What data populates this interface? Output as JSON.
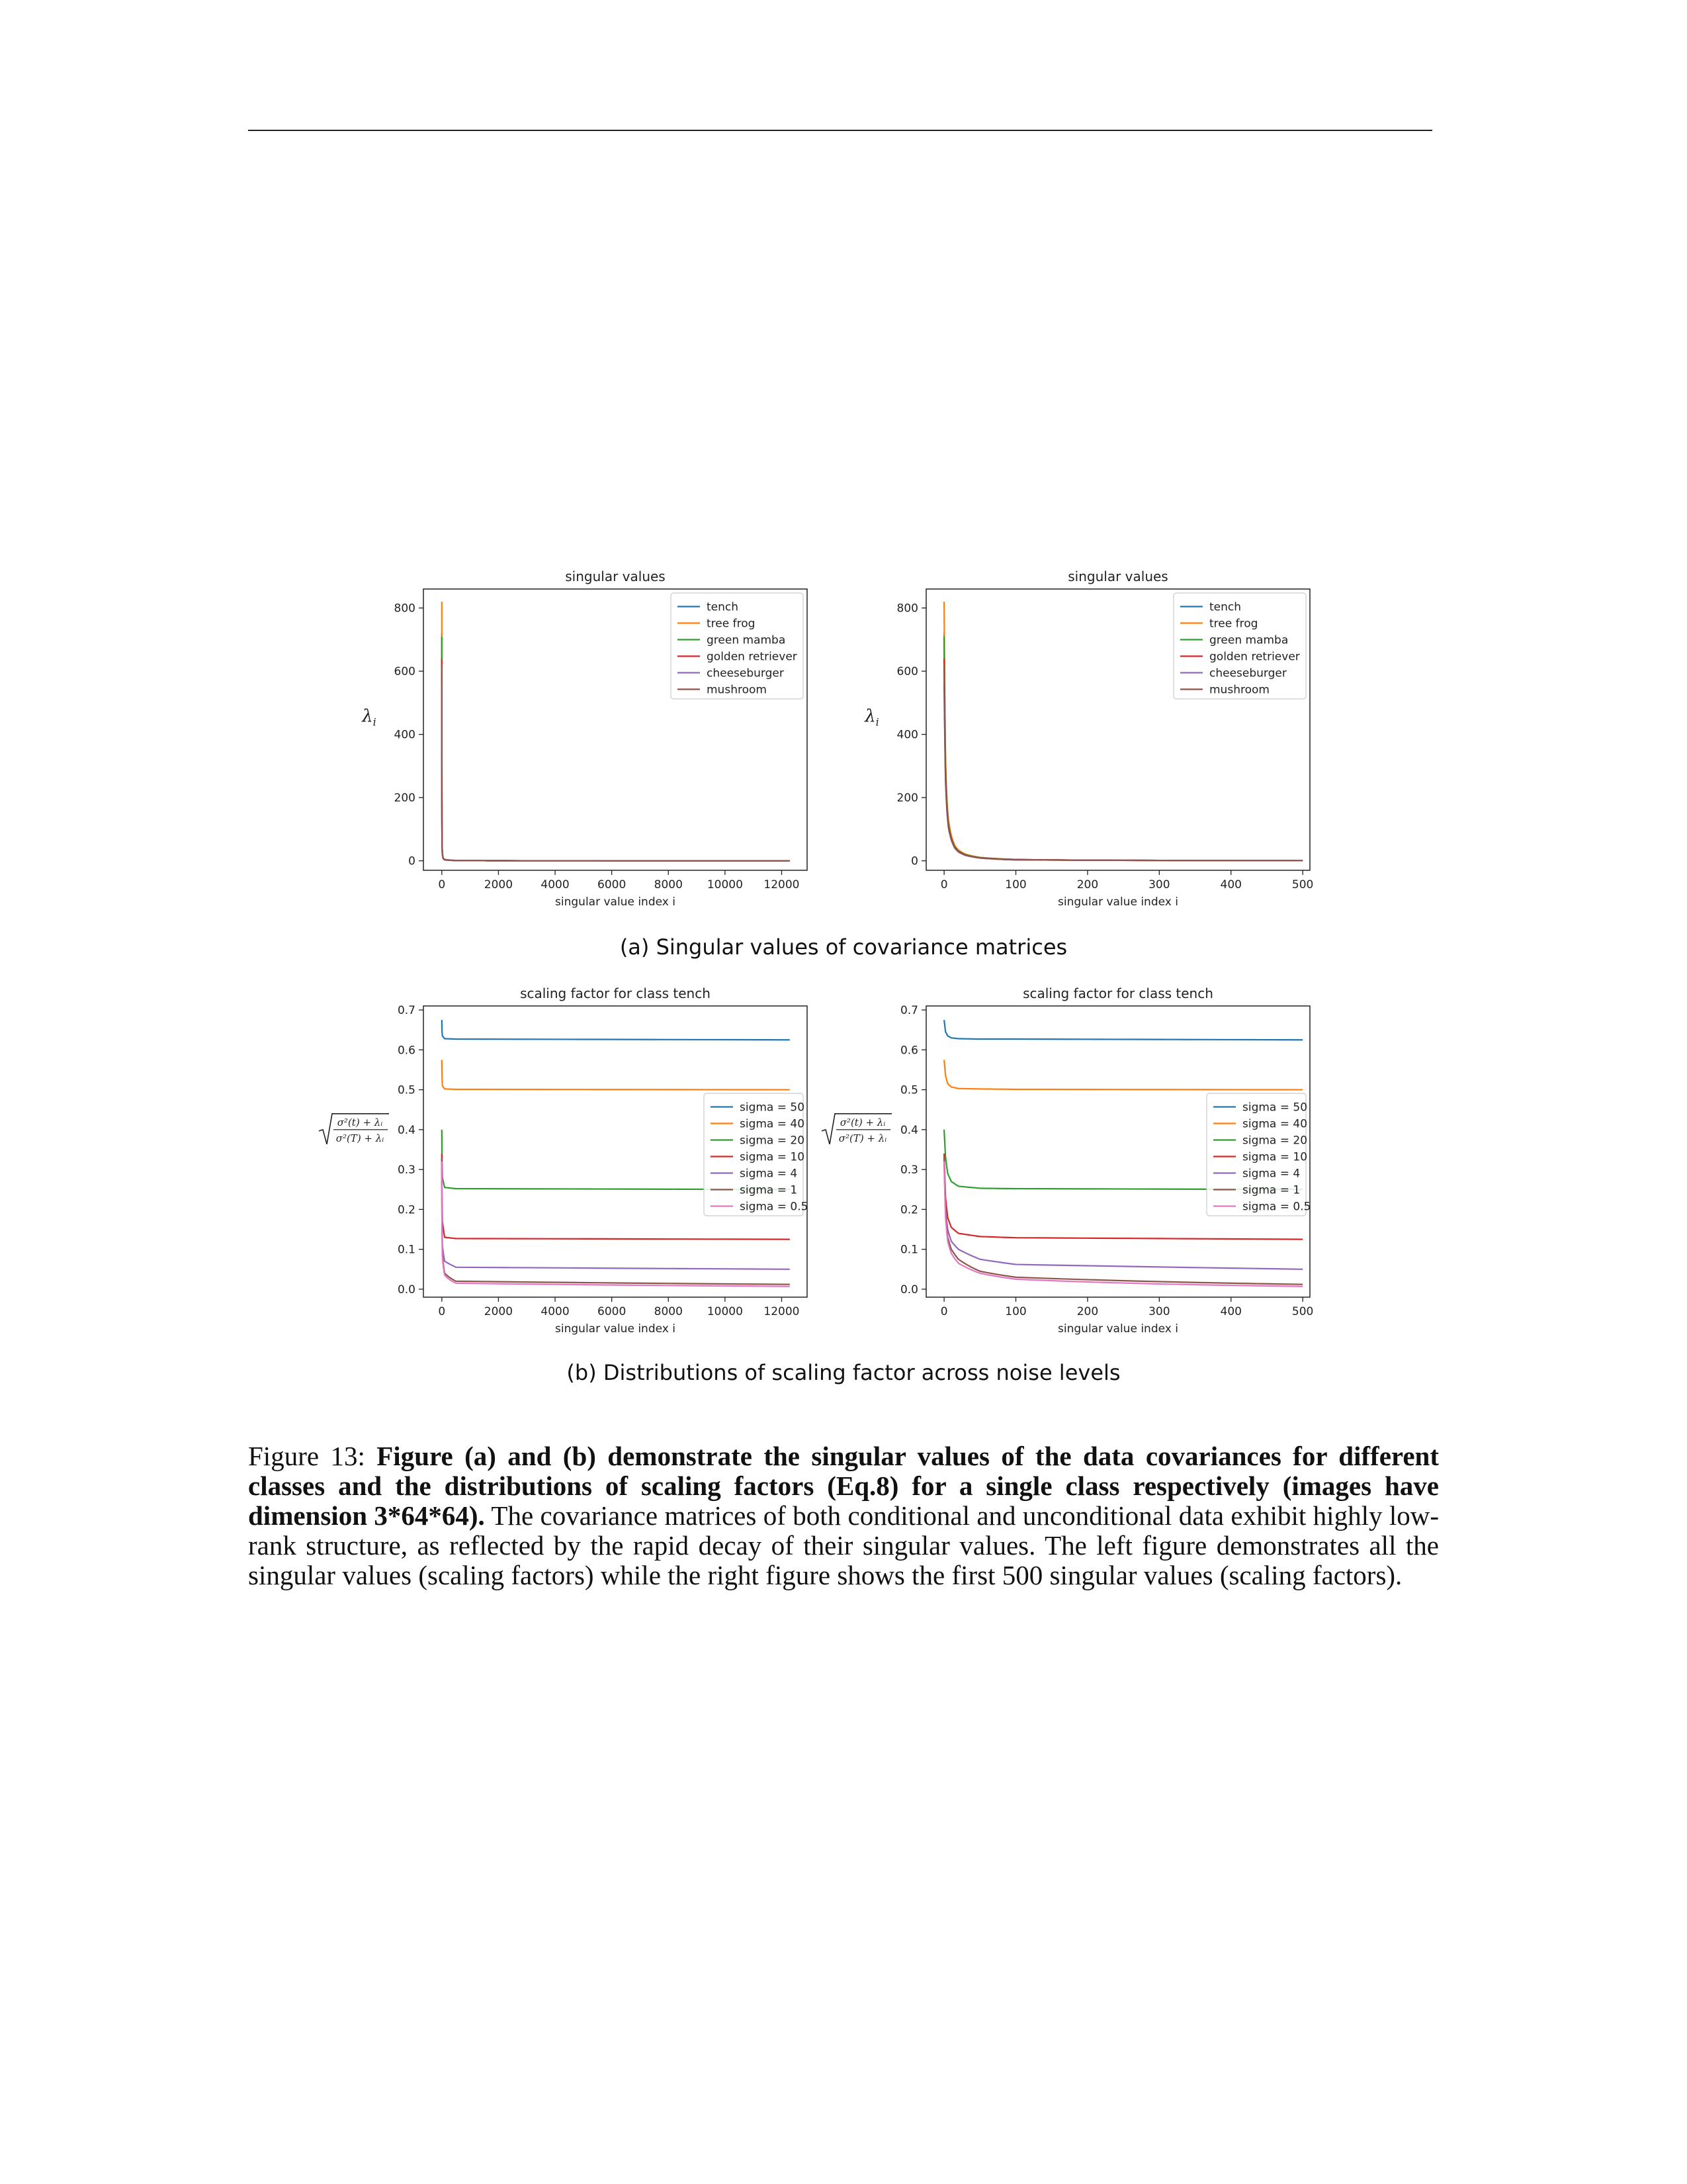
{
  "figure": {
    "subcaption_a": "(a) Singular values of covariance matrices",
    "subcaption_b": "(b) Distributions of scaling factor across noise levels",
    "caption_lead": "Figure 13: ",
    "caption_bold": "Figure (a) and (b) demonstrate the singular values of the data covariances for different classes and the distributions of scaling factors (Eq.8) for a single class respectively (images have dimension 3*64*64).",
    "caption_rest": " The covariance matrices of both conditional and unconditional data exhibit highly low-rank structure, as reflected by the rapid decay of their singular values. The left figure demonstrates all the singular values (scaling factors) while the right figure shows the first 500 singular values (scaling factors)."
  },
  "colors": {
    "blue": "#1f77b4",
    "orange": "#ff7f0e",
    "green": "#2ca02c",
    "red": "#d62728",
    "purple": "#9467bd",
    "brown": "#8c564b",
    "pink": "#e377c2"
  },
  "chart_data": [
    {
      "type": "line",
      "title": "singular values",
      "xlabel": "singular value index i",
      "ylabel": "λ_i",
      "xlim": [
        -650,
        12900
      ],
      "ylim": [
        -30,
        860
      ],
      "xticks": [
        0,
        2000,
        4000,
        6000,
        8000,
        10000,
        12000
      ],
      "yticks": [
        0,
        200,
        400,
        600,
        800
      ],
      "legend": "top-right",
      "decay_tau": 25,
      "series": [
        {
          "name": "tench",
          "color": "#1f77b4",
          "x": [
            0,
            2,
            5,
            10,
            20,
            50,
            100,
            500,
            2000,
            12288
          ],
          "y": [
            720,
            300,
            120,
            50,
            25,
            8,
            4,
            1,
            0.3,
            0
          ]
        },
        {
          "name": "tree frog",
          "color": "#ff7f0e",
          "x": [
            0,
            2,
            5,
            10,
            20,
            50,
            100,
            500,
            2000,
            12288
          ],
          "y": [
            820,
            320,
            130,
            55,
            27,
            9,
            4,
            1,
            0.3,
            0
          ]
        },
        {
          "name": "green mamba",
          "color": "#2ca02c",
          "x": [
            0,
            2,
            5,
            10,
            20,
            50,
            100,
            500,
            2000,
            12288
          ],
          "y": [
            710,
            290,
            115,
            50,
            24,
            8,
            4,
            1,
            0.3,
            0
          ]
        },
        {
          "name": "golden retriever",
          "color": "#d62728",
          "x": [
            0,
            2,
            5,
            10,
            20,
            50,
            100,
            500,
            2000,
            12288
          ],
          "y": [
            640,
            270,
            110,
            48,
            23,
            8,
            4,
            1,
            0.3,
            0
          ]
        },
        {
          "name": "cheeseburger",
          "color": "#9467bd",
          "x": [
            0,
            2,
            5,
            10,
            20,
            50,
            100,
            500,
            2000,
            12288
          ],
          "y": [
            560,
            250,
            100,
            45,
            22,
            7,
            3,
            1,
            0.3,
            0
          ]
        },
        {
          "name": "mushroom",
          "color": "#8c564b",
          "x": [
            0,
            2,
            5,
            10,
            20,
            50,
            100,
            500,
            2000,
            12288
          ],
          "y": [
            620,
            260,
            105,
            46,
            22,
            7,
            3,
            1,
            0.3,
            0
          ]
        }
      ]
    },
    {
      "type": "line",
      "title": "singular values",
      "xlabel": "singular value index i",
      "ylabel": "λ_i",
      "xlim": [
        -25,
        510
      ],
      "ylim": [
        -30,
        860
      ],
      "xticks": [
        0,
        100,
        200,
        300,
        400,
        500
      ],
      "yticks": [
        0,
        200,
        400,
        600,
        800
      ],
      "legend": "top-right",
      "series": [
        {
          "name": "tench",
          "color": "#1f77b4",
          "x": [
            0,
            1,
            2,
            4,
            6,
            10,
            15,
            20,
            30,
            50,
            100,
            200,
            500
          ],
          "y": [
            720,
            470,
            300,
            180,
            120,
            75,
            45,
            32,
            20,
            10,
            4,
            2,
            0.5
          ]
        },
        {
          "name": "tree frog",
          "color": "#ff7f0e",
          "x": [
            0,
            1,
            2,
            4,
            6,
            10,
            15,
            20,
            30,
            50,
            100,
            200,
            500
          ],
          "y": [
            820,
            510,
            320,
            190,
            130,
            80,
            48,
            34,
            21,
            11,
            4,
            2,
            0.5
          ]
        },
        {
          "name": "green mamba",
          "color": "#2ca02c",
          "x": [
            0,
            1,
            2,
            4,
            6,
            10,
            15,
            20,
            30,
            50,
            100,
            200,
            500
          ],
          "y": [
            710,
            450,
            290,
            175,
            118,
            72,
            44,
            31,
            19,
            10,
            4,
            2,
            0.5
          ]
        },
        {
          "name": "golden retriever",
          "color": "#d62728",
          "x": [
            0,
            1,
            2,
            4,
            6,
            10,
            15,
            20,
            30,
            50,
            100,
            200,
            500
          ],
          "y": [
            640,
            420,
            270,
            165,
            112,
            70,
            42,
            30,
            18,
            9,
            4,
            2,
            0.5
          ]
        },
        {
          "name": "cheeseburger",
          "color": "#9467bd",
          "x": [
            0,
            1,
            2,
            4,
            6,
            10,
            15,
            20,
            30,
            50,
            100,
            200,
            500
          ],
          "y": [
            560,
            380,
            250,
            155,
            105,
            66,
            40,
            28,
            17,
            9,
            3,
            2,
            0.5
          ]
        },
        {
          "name": "mushroom",
          "color": "#8c564b",
          "x": [
            0,
            1,
            2,
            4,
            6,
            10,
            15,
            20,
            30,
            50,
            100,
            200,
            500
          ],
          "y": [
            620,
            400,
            260,
            160,
            108,
            68,
            41,
            29,
            18,
            9,
            3,
            2,
            0.5
          ]
        }
      ]
    },
    {
      "type": "line",
      "title": "scaling factor for class tench",
      "xlabel": "singular value index i",
      "ylabel": "√((σ²(t)+λ_i)/(σ²(T)+λ_i))",
      "ylabel_num": "σ²(t) + λᵢ",
      "ylabel_den": "σ²(T) + λᵢ",
      "xlim": [
        -650,
        12900
      ],
      "ylim": [
        -0.02,
        0.71
      ],
      "xticks": [
        0,
        2000,
        4000,
        6000,
        8000,
        10000,
        12000
      ],
      "yticks": [
        0.0,
        0.1,
        0.2,
        0.3,
        0.4,
        0.5,
        0.6,
        0.7
      ],
      "legend": "center-right",
      "decay_tau": 80,
      "series": [
        {
          "name": "sigma = 50",
          "color": "#1f77b4",
          "x": [
            0,
            5,
            20,
            100,
            500,
            12288
          ],
          "y": [
            0.675,
            0.65,
            0.635,
            0.628,
            0.627,
            0.625
          ]
        },
        {
          "name": "sigma = 40",
          "color": "#ff7f0e",
          "x": [
            0,
            5,
            20,
            100,
            500,
            12288
          ],
          "y": [
            0.575,
            0.54,
            0.51,
            0.502,
            0.501,
            0.5
          ]
        },
        {
          "name": "sigma = 20",
          "color": "#2ca02c",
          "x": [
            0,
            5,
            20,
            100,
            500,
            12288
          ],
          "y": [
            0.4,
            0.34,
            0.28,
            0.255,
            0.252,
            0.25
          ]
        },
        {
          "name": "sigma = 10",
          "color": "#d62728",
          "x": [
            0,
            5,
            20,
            100,
            500,
            12288
          ],
          "y": [
            0.34,
            0.25,
            0.17,
            0.13,
            0.127,
            0.125
          ]
        },
        {
          "name": "sigma = 4",
          "color": "#9467bd",
          "x": [
            0,
            5,
            20,
            100,
            500,
            12288
          ],
          "y": [
            0.33,
            0.21,
            0.11,
            0.07,
            0.055,
            0.05
          ]
        },
        {
          "name": "sigma = 1",
          "color": "#8c564b",
          "x": [
            0,
            5,
            20,
            100,
            500,
            12288
          ],
          "y": [
            0.33,
            0.19,
            0.09,
            0.04,
            0.02,
            0.012
          ]
        },
        {
          "name": "sigma = 0.5",
          "color": "#e377c2",
          "x": [
            0,
            5,
            20,
            100,
            500,
            12288
          ],
          "y": [
            0.32,
            0.18,
            0.08,
            0.035,
            0.015,
            0.007
          ]
        }
      ]
    },
    {
      "type": "line",
      "title": "scaling factor for class tench",
      "xlabel": "singular value index i",
      "ylabel": "√((σ²(t)+λ_i)/(σ²(T)+λ_i))",
      "ylabel_num": "σ²(t) + λᵢ",
      "ylabel_den": "σ²(T) + λᵢ",
      "xlim": [
        -25,
        510
      ],
      "ylim": [
        -0.02,
        0.71
      ],
      "xticks": [
        0,
        100,
        200,
        300,
        400,
        500
      ],
      "yticks": [
        0.0,
        0.1,
        0.2,
        0.3,
        0.4,
        0.5,
        0.6,
        0.7
      ],
      "legend": "center-right",
      "series": [
        {
          "name": "sigma = 50",
          "color": "#1f77b4",
          "x": [
            0,
            2,
            5,
            10,
            20,
            50,
            100,
            500
          ],
          "y": [
            0.675,
            0.645,
            0.635,
            0.63,
            0.628,
            0.627,
            0.627,
            0.625
          ]
        },
        {
          "name": "sigma = 40",
          "color": "#ff7f0e",
          "x": [
            0,
            2,
            5,
            10,
            20,
            50,
            100,
            500
          ],
          "y": [
            0.575,
            0.535,
            0.515,
            0.507,
            0.503,
            0.502,
            0.501,
            0.5
          ]
        },
        {
          "name": "sigma = 20",
          "color": "#2ca02c",
          "x": [
            0,
            2,
            5,
            10,
            20,
            50,
            100,
            500
          ],
          "y": [
            0.4,
            0.33,
            0.29,
            0.27,
            0.258,
            0.253,
            0.252,
            0.25
          ]
        },
        {
          "name": "sigma = 10",
          "color": "#d62728",
          "x": [
            0,
            2,
            5,
            10,
            20,
            50,
            100,
            500
          ],
          "y": [
            0.34,
            0.23,
            0.18,
            0.155,
            0.14,
            0.132,
            0.129,
            0.125
          ]
        },
        {
          "name": "sigma = 4",
          "color": "#9467bd",
          "x": [
            0,
            2,
            5,
            10,
            20,
            50,
            100,
            500
          ],
          "y": [
            0.33,
            0.2,
            0.15,
            0.12,
            0.1,
            0.075,
            0.062,
            0.05
          ]
        },
        {
          "name": "sigma = 1",
          "color": "#8c564b",
          "x": [
            0,
            2,
            5,
            10,
            20,
            50,
            100,
            500
          ],
          "y": [
            0.33,
            0.19,
            0.13,
            0.1,
            0.075,
            0.045,
            0.03,
            0.012
          ]
        },
        {
          "name": "sigma = 0.5",
          "color": "#e377c2",
          "x": [
            0,
            2,
            5,
            10,
            20,
            50,
            100,
            500
          ],
          "y": [
            0.32,
            0.18,
            0.12,
            0.09,
            0.065,
            0.04,
            0.025,
            0.007
          ]
        }
      ]
    }
  ]
}
